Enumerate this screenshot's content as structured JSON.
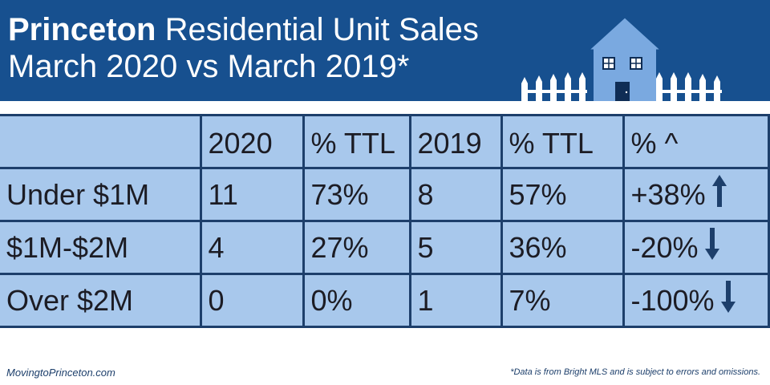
{
  "header": {
    "title_bold": "Princeton",
    "title_rest": "Residential Unit Sales",
    "subtitle": "March 2020 vs March 2019*"
  },
  "colors": {
    "header_bg": "#17508f",
    "table_bg": "#a8c8ec",
    "grid": "#1d3f6b",
    "arrow": "#1d3f6b"
  },
  "chart_data": {
    "type": "table",
    "title": "Princeton Residential Unit Sales March 2020 vs March 2019*",
    "columns": [
      "",
      "2020",
      "% TTL",
      "2019",
      "% TTL",
      "% ^"
    ],
    "rows": [
      {
        "label": "Under $1M",
        "y2020": "11",
        "pct2020": "73%",
        "y2019": "8",
        "pct2019": "57%",
        "change": "+38%",
        "direction": "up"
      },
      {
        "label": "$1M-$2M",
        "y2020": "4",
        "pct2020": "27%",
        "y2019": "5",
        "pct2019": "36%",
        "change": "-20%",
        "direction": "down"
      },
      {
        "label": "Over $2M",
        "y2020": "0",
        "pct2020": "0%",
        "y2019": "1",
        "pct2019": "7%",
        "change": "-100%",
        "direction": "down"
      }
    ]
  },
  "footer": {
    "site": "MovingtoPrinceton.com",
    "disclaimer": "*Data is from Bright MLS and is subject to errors and omissions."
  }
}
